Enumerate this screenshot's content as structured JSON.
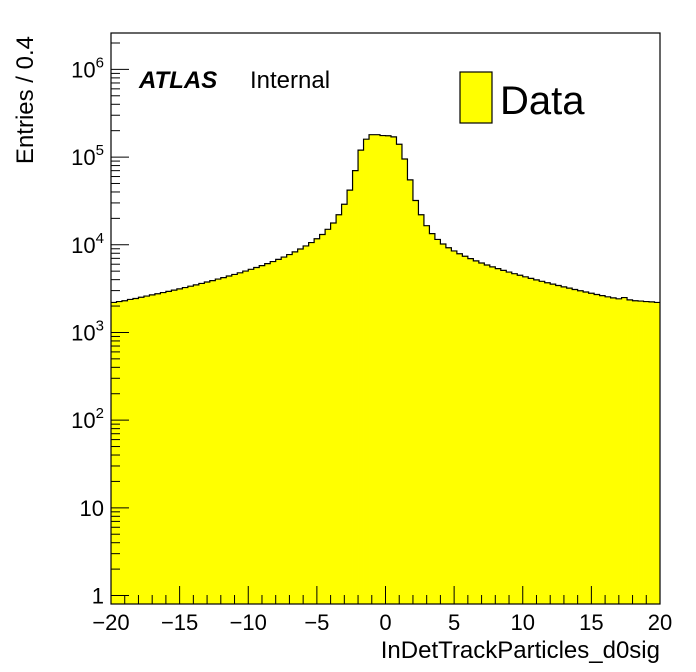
{
  "chart_data": {
    "type": "histogram",
    "xlabel": "InDetTrackParticles_d0sig",
    "ylabel": "Entries / 0.4",
    "xlim": [
      -20,
      20
    ],
    "ylim": [
      0.8,
      2600000
    ],
    "yscale": "log",
    "bin_width": 0.4,
    "x_ticks": [
      "−20",
      "−15",
      "−10",
      "−5",
      "0",
      "5",
      "10",
      "15",
      "20"
    ],
    "y_ticks": [
      {
        "base": "1",
        "exp": ""
      },
      {
        "base": "10",
        "exp": ""
      },
      {
        "base": "10",
        "exp": "2"
      },
      {
        "base": "10",
        "exp": "3"
      },
      {
        "base": "10",
        "exp": "4"
      },
      {
        "base": "10",
        "exp": "5"
      },
      {
        "base": "10",
        "exp": "6"
      }
    ],
    "atlas_label": "ATLAS",
    "status_label": "Internal",
    "legend": [
      {
        "name": "Data",
        "color": "#ffff00"
      }
    ],
    "legend_position": "top-right",
    "fill_color": "#ffff00",
    "line_color": "#000000",
    "bin_centers": [
      -19.8,
      -19.4,
      -19.0,
      -18.6,
      -18.2,
      -17.8,
      -17.4,
      -17.0,
      -16.6,
      -16.2,
      -15.8,
      -15.4,
      -15.0,
      -14.6,
      -14.2,
      -13.8,
      -13.4,
      -13.0,
      -12.6,
      -12.2,
      -11.8,
      -11.4,
      -11.0,
      -10.6,
      -10.2,
      -9.8,
      -9.4,
      -9.0,
      -8.6,
      -8.2,
      -7.8,
      -7.4,
      -7.0,
      -6.6,
      -6.2,
      -5.8,
      -5.4,
      -5.0,
      -4.6,
      -4.2,
      -3.8,
      -3.4,
      -3.0,
      -2.6,
      -2.2,
      -1.8,
      -1.4,
      -1.0,
      -0.6,
      -0.2,
      0.2,
      0.6,
      1.0,
      1.4,
      1.8,
      2.2,
      2.6,
      3.0,
      3.4,
      3.8,
      4.2,
      4.6,
      5.0,
      5.4,
      5.8,
      6.2,
      6.6,
      7.0,
      7.4,
      7.8,
      8.2,
      8.6,
      9.0,
      9.4,
      9.8,
      10.2,
      10.6,
      11.0,
      11.4,
      11.8,
      12.2,
      12.6,
      13.0,
      13.4,
      13.8,
      14.2,
      14.6,
      15.0,
      15.4,
      15.8,
      16.2,
      16.6,
      17.0,
      17.4,
      17.8,
      18.2,
      18.6,
      19.0,
      19.4,
      19.8
    ],
    "values": [
      2200,
      2250,
      2300,
      2380,
      2440,
      2520,
      2600,
      2680,
      2760,
      2850,
      2940,
      3040,
      3140,
      3250,
      3370,
      3490,
      3620,
      3760,
      3900,
      4060,
      4220,
      4400,
      4590,
      4790,
      5010,
      5250,
      5500,
      5780,
      6090,
      6430,
      6810,
      7240,
      7730,
      8290,
      8940,
      9700,
      10600,
      11700,
      13100,
      15000,
      17700,
      22000,
      29000,
      42000,
      70000,
      120000,
      160000,
      180000,
      180000,
      176000,
      175000,
      170000,
      140000,
      95000,
      55000,
      32000,
      22000,
      16500,
      13400,
      11500,
      10200,
      9250,
      8500,
      7900,
      7400,
      6950,
      6550,
      6200,
      5880,
      5600,
      5340,
      5100,
      4880,
      4680,
      4490,
      4310,
      4140,
      3980,
      3830,
      3690,
      3560,
      3430,
      3310,
      3200,
      3090,
      2990,
      2890,
      2800,
      2710,
      2630,
      2550,
      2480,
      2420,
      2500,
      2350,
      2300,
      2280,
      2250,
      2230,
      2200
    ]
  }
}
